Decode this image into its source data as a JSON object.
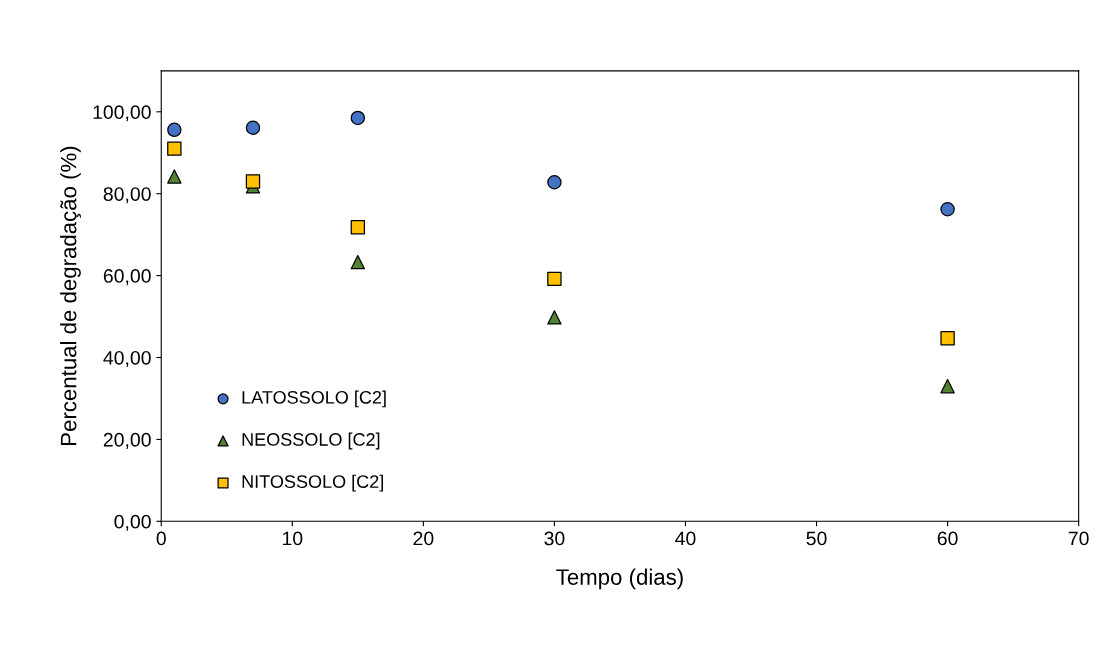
{
  "chart_data": {
    "type": "scatter",
    "xlabel": "Tempo (dias)",
    "ylabel": "Percentual de degradação (%)",
    "xlim": [
      0,
      70
    ],
    "xticks": [
      0,
      10,
      20,
      30,
      40,
      50,
      60,
      70
    ],
    "ylim": [
      0,
      110
    ],
    "yticks": [
      {
        "value": 0,
        "label": "0,00"
      },
      {
        "value": 20,
        "label": "20,00"
      },
      {
        "value": 40,
        "label": "40,00"
      },
      {
        "value": 60,
        "label": "60,00"
      },
      {
        "value": 80,
        "label": "80,00"
      },
      {
        "value": 100,
        "label": "100,00"
      }
    ],
    "grid": false,
    "legend": "lower left",
    "series": [
      {
        "name": "LATOSSOLO [C2]",
        "color": "#4472c4",
        "marker": "circle",
        "x": [
          1,
          7,
          15,
          30,
          60
        ],
        "values": [
          95.6,
          96.1,
          98.5,
          82.8,
          76.2
        ]
      },
      {
        "name": "NEOSSOLO [C2]",
        "color": "#548235",
        "marker": "triangle",
        "x": [
          1,
          7,
          15,
          30,
          60
        ],
        "values": [
          84.2,
          81.8,
          63.3,
          49.8,
          33.0
        ]
      },
      {
        "name": "NITOSSOLO [C2]",
        "color": "#ffc000",
        "marker": "square",
        "x": [
          1,
          7,
          15,
          30,
          60
        ],
        "values": [
          91.0,
          83.0,
          71.8,
          59.2,
          44.7
        ]
      }
    ]
  }
}
